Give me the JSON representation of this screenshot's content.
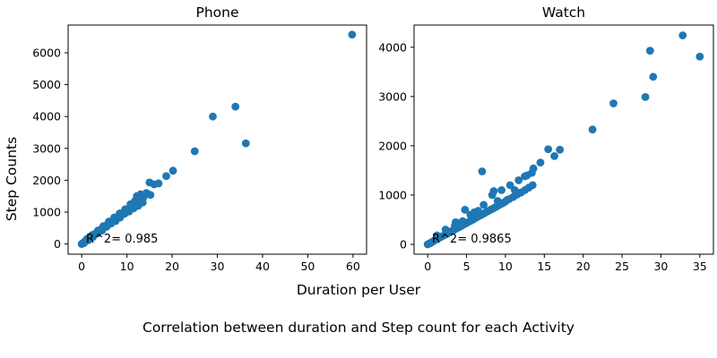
{
  "figure": {
    "xlabel": "Duration per User",
    "ylabel": "Step Counts",
    "caption": "Correlation between duration and Step count for each Activity",
    "marker_color": "#1f77b4"
  },
  "chart_data": [
    {
      "type": "scatter",
      "title": "Phone",
      "annotation": "R^2= 0.985",
      "xlim": [
        -3,
        63
      ],
      "ylim": [
        -320,
        6870
      ],
      "xticks": [
        0,
        10,
        20,
        30,
        40,
        50,
        60
      ],
      "yticks": [
        0,
        1000,
        2000,
        3000,
        4000,
        5000,
        6000
      ],
      "points": [
        [
          0,
          0
        ],
        [
          0.2,
          20
        ],
        [
          0.4,
          40
        ],
        [
          0.6,
          60
        ],
        [
          0.8,
          90
        ],
        [
          1.0,
          110
        ],
        [
          1.3,
          140
        ],
        [
          1.6,
          170
        ],
        [
          1.9,
          200
        ],
        [
          2.2,
          240
        ],
        [
          2.5,
          270
        ],
        [
          2.8,
          300
        ],
        [
          3.1,
          330
        ],
        [
          3.4,
          360
        ],
        [
          3.7,
          400
        ],
        [
          4.0,
          430
        ],
        [
          4.3,
          460
        ],
        [
          4.6,
          490
        ],
        [
          4.9,
          520
        ],
        [
          5.2,
          560
        ],
        [
          5.5,
          590
        ],
        [
          5.8,
          620
        ],
        [
          6.1,
          650
        ],
        [
          6.4,
          680
        ],
        [
          6.7,
          720
        ],
        [
          7.0,
          750
        ],
        [
          7.3,
          780
        ],
        [
          7.6,
          810
        ],
        [
          7.9,
          840
        ],
        [
          8.2,
          880
        ],
        [
          8.5,
          910
        ],
        [
          8.8,
          940
        ],
        [
          9.1,
          970
        ],
        [
          9.4,
          1000
        ],
        [
          9.7,
          1040
        ],
        [
          10.0,
          1070
        ],
        [
          10.3,
          1100
        ],
        [
          10.6,
          1130
        ],
        [
          10.9,
          1160
        ],
        [
          11.2,
          1200
        ],
        [
          11.5,
          1230
        ],
        [
          11.8,
          1260
        ],
        [
          12.1,
          1290
        ],
        [
          12.4,
          1320
        ],
        [
          12.7,
          1360
        ],
        [
          13.0,
          1390
        ],
        [
          13.3,
          1420
        ],
        [
          13.6,
          1450
        ],
        [
          0.5,
          30
        ],
        [
          1.5,
          120
        ],
        [
          2.5,
          220
        ],
        [
          3.5,
          330
        ],
        [
          4.5,
          420
        ],
        [
          5.5,
          540
        ],
        [
          6.5,
          640
        ],
        [
          7.5,
          720
        ],
        [
          8.5,
          830
        ],
        [
          9.5,
          950
        ],
        [
          10.5,
          1020
        ],
        [
          11.5,
          1120
        ],
        [
          12.5,
          1200
        ],
        [
          13.5,
          1300
        ],
        [
          1.2,
          160
        ],
        [
          2.3,
          280
        ],
        [
          3.6,
          420
        ],
        [
          4.8,
          560
        ],
        [
          6.0,
          700
        ],
        [
          7.2,
          830
        ],
        [
          8.4,
          960
        ],
        [
          9.6,
          1090
        ],
        [
          10.8,
          1250
        ],
        [
          11.8,
          1350
        ],
        [
          12.2,
          1500
        ],
        [
          13.0,
          1560
        ],
        [
          14.3,
          1600
        ],
        [
          14.6,
          1570
        ],
        [
          15.2,
          1540
        ],
        [
          15.0,
          1930
        ],
        [
          16.0,
          1870
        ],
        [
          17.0,
          1900
        ],
        [
          18.7,
          2130
        ],
        [
          20.2,
          2300
        ],
        [
          25.0,
          2910
        ],
        [
          29.0,
          4000
        ],
        [
          34.0,
          4310
        ],
        [
          36.3,
          3160
        ],
        [
          59.8,
          6570
        ]
      ]
    },
    {
      "type": "scatter",
      "title": "Watch",
      "annotation": "R^2= 0.9865",
      "xlim": [
        -1.75,
        36.75
      ],
      "ylim": [
        -200,
        4450
      ],
      "xticks": [
        0,
        5,
        10,
        15,
        20,
        25,
        30,
        35
      ],
      "yticks": [
        0,
        1000,
        2000,
        3000,
        4000
      ],
      "points": [
        [
          0,
          0
        ],
        [
          0.2,
          15
        ],
        [
          0.4,
          30
        ],
        [
          0.6,
          50
        ],
        [
          0.8,
          70
        ],
        [
          1.0,
          90
        ],
        [
          1.3,
          115
        ],
        [
          1.6,
          140
        ],
        [
          1.9,
          165
        ],
        [
          2.2,
          190
        ],
        [
          2.5,
          215
        ],
        [
          2.8,
          240
        ],
        [
          3.1,
          270
        ],
        [
          3.4,
          295
        ],
        [
          3.7,
          320
        ],
        [
          4.0,
          345
        ],
        [
          4.3,
          370
        ],
        [
          4.6,
          400
        ],
        [
          4.9,
          425
        ],
        [
          5.2,
          450
        ],
        [
          5.5,
          475
        ],
        [
          5.8,
          500
        ],
        [
          6.1,
          530
        ],
        [
          6.4,
          555
        ],
        [
          6.7,
          580
        ],
        [
          7.0,
          605
        ],
        [
          7.3,
          630
        ],
        [
          7.6,
          660
        ],
        [
          7.9,
          685
        ],
        [
          8.2,
          710
        ],
        [
          8.5,
          735
        ],
        [
          8.8,
          760
        ],
        [
          9.1,
          790
        ],
        [
          9.4,
          815
        ],
        [
          9.7,
          840
        ],
        [
          10.0,
          870
        ],
        [
          10.5,
          920
        ],
        [
          11.0,
          960
        ],
        [
          11.5,
          1010
        ],
        [
          12.0,
          1050
        ],
        [
          12.5,
          1100
        ],
        [
          13.0,
          1150
        ],
        [
          13.5,
          1200
        ],
        [
          0.5,
          40
        ],
        [
          1.5,
          140
        ],
        [
          2.5,
          260
        ],
        [
          3.5,
          380
        ],
        [
          4.5,
          470
        ],
        [
          5.5,
          600
        ],
        [
          6.5,
          680
        ],
        [
          1.2,
          180
        ],
        [
          2.3,
          300
        ],
        [
          3.6,
          450
        ],
        [
          4.8,
          700
        ],
        [
          6.0,
          650
        ],
        [
          7.2,
          800
        ],
        [
          8.3,
          1000
        ],
        [
          9.5,
          1100
        ],
        [
          10.6,
          1200
        ],
        [
          11.7,
          1300
        ],
        [
          12.5,
          1380
        ],
        [
          13.4,
          1450
        ],
        [
          13.6,
          1540
        ],
        [
          12.8,
          1400
        ],
        [
          11.2,
          1100
        ],
        [
          10.2,
          900
        ],
        [
          9.0,
          880
        ],
        [
          8.5,
          1080
        ],
        [
          7.0,
          1480
        ],
        [
          14.5,
          1660
        ],
        [
          15.5,
          1930
        ],
        [
          16.3,
          1790
        ],
        [
          17.0,
          1920
        ],
        [
          21.2,
          2330
        ],
        [
          23.9,
          2860
        ],
        [
          28.0,
          2990
        ],
        [
          28.6,
          3930
        ],
        [
          29.0,
          3400
        ],
        [
          32.8,
          4240
        ],
        [
          35.0,
          3810
        ]
      ]
    }
  ]
}
